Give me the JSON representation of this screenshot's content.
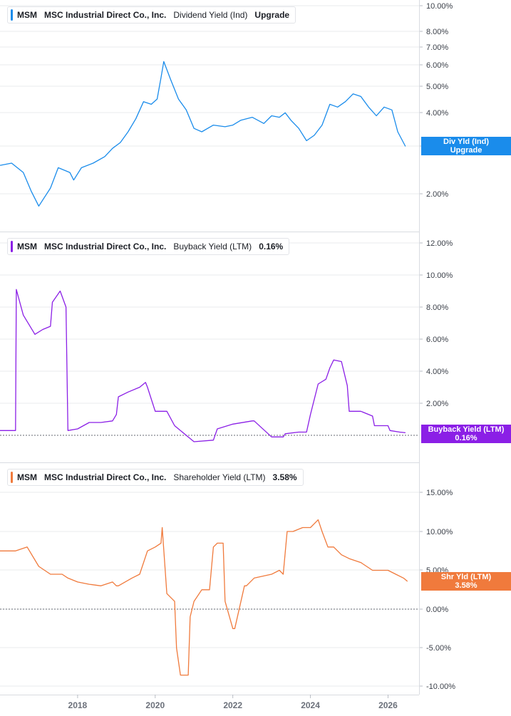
{
  "colors": {
    "dividend": "#1a8ceb",
    "buyback": "#8b1fe6",
    "shareholder": "#f07a3c",
    "grid": "#e9ebee",
    "axis_text": "#3a3f48"
  },
  "x_axis": {
    "ticks": [
      "2018",
      "2020",
      "2022",
      "2024",
      "2026"
    ]
  },
  "panels": [
    {
      "ticker": "MSM",
      "company": "MSC Industrial Direct Co., Inc.",
      "metric": "Dividend Yield (Ind)",
      "value": "Upgrade",
      "flag_line1": "Div Yld (Ind)",
      "flag_line2": "Upgrade",
      "y_ticks": [
        "10.00%",
        "8.00%",
        "7.00%",
        "6.00%",
        "5.00%",
        "4.00%",
        "3.00%",
        "2.00%"
      ]
    },
    {
      "ticker": "MSM",
      "company": "MSC Industrial Direct Co., Inc.",
      "metric": "Buyback Yield (LTM)",
      "value": "0.16%",
      "flag_line1": "Buyback Yield (LTM)",
      "flag_line2": "0.16%",
      "y_ticks": [
        "12.00%",
        "10.00%",
        "8.00%",
        "6.00%",
        "4.00%",
        "2.00%"
      ]
    },
    {
      "ticker": "MSM",
      "company": "MSC Industrial Direct Co., Inc.",
      "metric": "Shareholder Yield (LTM)",
      "value": "3.58%",
      "flag_line1": "Shr Yld (LTM)",
      "flag_line2": "3.58%",
      "y_ticks": [
        "15.00%",
        "10.00%",
        "5.00%",
        "0.00%",
        "-5.00%",
        "-10.00%"
      ]
    }
  ],
  "chart_data": [
    {
      "type": "line",
      "series": [
        {
          "name": "Dividend Yield (Ind)",
          "x": [
            2016.0,
            2016.3,
            2016.6,
            2016.8,
            2017.0,
            2017.3,
            2017.5,
            2017.8,
            2017.9,
            2018.1,
            2018.4,
            2018.7,
            2018.9,
            2019.1,
            2019.3,
            2019.5,
            2019.7,
            2019.9,
            2020.05,
            2020.15,
            2020.22,
            2020.4,
            2020.6,
            2020.8,
            2021.0,
            2021.2,
            2021.5,
            2021.8,
            2022.0,
            2022.2,
            2022.5,
            2022.8,
            2023.0,
            2023.2,
            2023.35,
            2023.5,
            2023.7,
            2023.9,
            2024.1,
            2024.3,
            2024.5,
            2024.7,
            2024.9,
            2025.1,
            2025.3,
            2025.5,
            2025.7,
            2025.9,
            2026.1,
            2026.25,
            2026.45
          ],
          "y": [
            2.55,
            2.6,
            2.4,
            2.05,
            1.8,
            2.1,
            2.5,
            2.4,
            2.25,
            2.5,
            2.6,
            2.75,
            2.95,
            3.1,
            3.4,
            3.8,
            4.4,
            4.3,
            4.5,
            5.4,
            6.2,
            5.3,
            4.5,
            4.1,
            3.5,
            3.4,
            3.6,
            3.55,
            3.6,
            3.75,
            3.85,
            3.65,
            3.9,
            3.85,
            4.0,
            3.75,
            3.5,
            3.15,
            3.3,
            3.6,
            4.3,
            4.2,
            4.4,
            4.7,
            4.6,
            4.2,
            3.9,
            4.2,
            4.1,
            3.4,
            3.0
          ]
        }
      ],
      "y_scale": "log"
    },
    {
      "type": "line",
      "series": [
        {
          "name": "Buyback Yield (LTM)",
          "x": [
            2016.0,
            2016.4,
            2016.42,
            2016.6,
            2016.9,
            2017.1,
            2017.3,
            2017.35,
            2017.55,
            2017.7,
            2017.75,
            2018.0,
            2018.3,
            2018.6,
            2018.9,
            2019.0,
            2019.05,
            2019.3,
            2019.6,
            2019.75,
            2019.8,
            2020.0,
            2020.05,
            2020.25,
            2020.3,
            2020.5,
            2020.6,
            2021.0,
            2021.5,
            2021.6,
            2022.0,
            2022.5,
            2022.55,
            2023.0,
            2023.3,
            2023.35,
            2023.7,
            2023.75,
            2023.9,
            2024.0,
            2024.2,
            2024.4,
            2024.5,
            2024.6,
            2024.8,
            2024.95,
            2025.0,
            2025.3,
            2025.6,
            2025.65,
            2026.0,
            2026.05,
            2026.3,
            2026.45
          ],
          "y": [
            0.3,
            0.3,
            9.1,
            7.5,
            6.3,
            6.6,
            6.8,
            8.3,
            9.0,
            8.0,
            0.3,
            0.4,
            0.8,
            0.8,
            0.9,
            1.3,
            2.4,
            2.7,
            3.0,
            3.3,
            3.0,
            1.5,
            1.5,
            1.5,
            1.5,
            0.6,
            0.4,
            -0.4,
            -0.3,
            0.4,
            0.7,
            0.9,
            0.9,
            -0.1,
            -0.1,
            0.1,
            0.2,
            0.2,
            0.2,
            1.3,
            3.2,
            3.5,
            4.2,
            4.7,
            4.6,
            3.1,
            1.5,
            1.5,
            1.2,
            0.6,
            0.6,
            0.3,
            0.2,
            0.16
          ]
        }
      ],
      "y_scale": "linear",
      "reference_line": 0
    },
    {
      "type": "line",
      "series": [
        {
          "name": "Shareholder Yield (LTM)",
          "x": [
            2016.0,
            2016.4,
            2016.7,
            2017.0,
            2017.3,
            2017.6,
            2017.75,
            2018.0,
            2018.3,
            2018.6,
            2018.9,
            2019.0,
            2019.05,
            2019.4,
            2019.6,
            2019.8,
            2020.0,
            2020.15,
            2020.18,
            2020.3,
            2020.5,
            2020.55,
            2020.65,
            2020.85,
            2020.9,
            2021.0,
            2021.2,
            2021.4,
            2021.5,
            2021.6,
            2021.75,
            2021.8,
            2022.0,
            2022.05,
            2022.3,
            2022.35,
            2022.55,
            2023.0,
            2023.2,
            2023.3,
            2023.4,
            2023.55,
            2023.8,
            2024.0,
            2024.2,
            2024.3,
            2024.45,
            2024.6,
            2024.8,
            2025.0,
            2025.3,
            2025.6,
            2025.7,
            2026.0,
            2026.2,
            2026.4,
            2026.5
          ],
          "y": [
            7.5,
            7.5,
            8.0,
            5.5,
            4.5,
            4.5,
            4.0,
            3.5,
            3.2,
            3.0,
            3.5,
            3.0,
            3.0,
            4.0,
            4.5,
            7.5,
            8.0,
            8.5,
            10.5,
            2.0,
            1.0,
            -5.0,
            -8.5,
            -8.5,
            -1.0,
            1.0,
            2.5,
            2.5,
            8.0,
            8.5,
            8.5,
            1.0,
            -2.5,
            -2.5,
            3.0,
            3.0,
            4.0,
            4.5,
            5.0,
            4.5,
            10.0,
            10.0,
            10.5,
            10.5,
            11.5,
            10.0,
            8.0,
            8.0,
            7.0,
            6.5,
            6.0,
            5.0,
            5.0,
            5.0,
            4.5,
            4.0,
            3.58
          ]
        }
      ],
      "y_scale": "linear",
      "reference_line": 0
    }
  ]
}
